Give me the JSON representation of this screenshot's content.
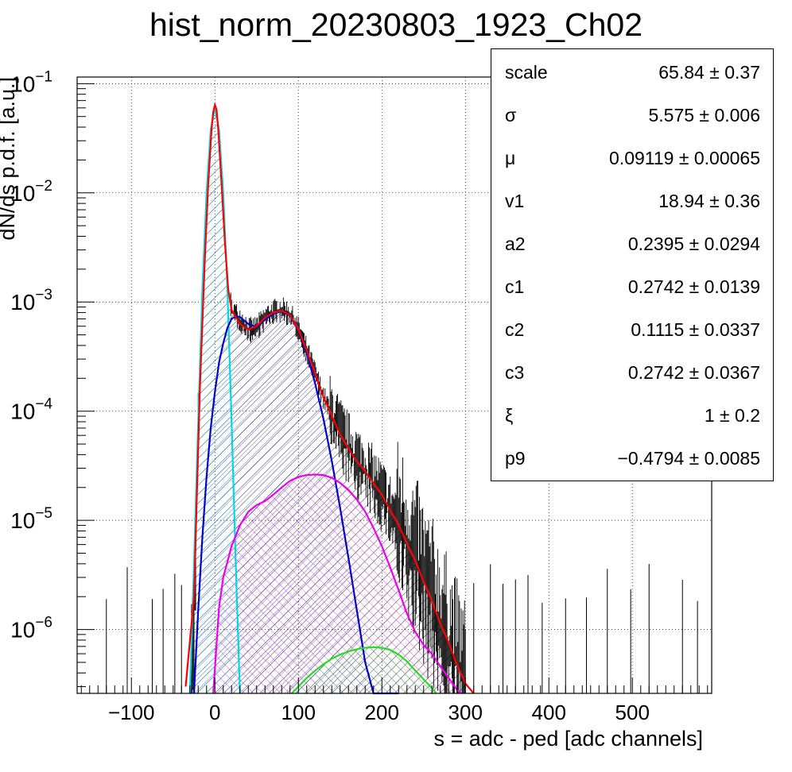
{
  "chart_data": {
    "type": "line",
    "title": "hist_norm_20230803_1923_Ch02",
    "xlabel": "s = adc - ped [adc channels]",
    "ylabel": "dN/ds p.d.f. [a.u.]",
    "xlim": [
      -165,
      595
    ],
    "ylim": [
      2.6e-07,
      0.115
    ],
    "yscale": "log",
    "grid": true,
    "x_ticks": [
      "−100",
      "0",
      "100",
      "200",
      "300",
      "400",
      "500"
    ],
    "y_ticks": [
      {
        "base": "10",
        "exp": "−1"
      },
      {
        "base": "10",
        "exp": "−2"
      },
      {
        "base": "10",
        "exp": "−3"
      },
      {
        "base": "10",
        "exp": "−4"
      },
      {
        "base": "10",
        "exp": "−5"
      },
      {
        "base": "10",
        "exp": "−6"
      }
    ],
    "series": [
      {
        "color": "#ff0000",
        "hatch": false,
        "x": [
          -35,
          -25,
          -18,
          -12,
          -8,
          -4,
          -2,
          0,
          2,
          4,
          8,
          12,
          16,
          20,
          24,
          30,
          40,
          50,
          60,
          70,
          80,
          90,
          100,
          110,
          120,
          130,
          140,
          150,
          160,
          170,
          180,
          190,
          200,
          210,
          220,
          230,
          240,
          250,
          260,
          270,
          280,
          290,
          300,
          310
        ],
        "y": [
          3e-07,
          2e-06,
          0.00016,
          0.0025,
          0.012,
          0.038,
          0.055,
          0.064,
          0.058,
          0.038,
          0.012,
          0.0035,
          0.0013,
          0.00085,
          0.00075,
          0.00063,
          0.00056,
          0.0006,
          0.00072,
          0.0008,
          0.00083,
          0.00076,
          0.00056,
          0.00036,
          0.00022,
          0.000135,
          9e-05,
          6.2e-05,
          4.5e-05,
          3.5e-05,
          2.8e-05,
          2.2e-05,
          1.7e-05,
          1.25e-05,
          9e-06,
          6.2e-06,
          4.2e-06,
          2.8e-06,
          1.8e-06,
          1.15e-06,
          7.5e-07,
          4.8e-07,
          3.2e-07,
          2.6e-07
        ]
      },
      {
        "color": "#00d8e8",
        "hatch": true,
        "x": [
          -30,
          -25,
          -20,
          -15,
          -10,
          -5,
          0,
          5,
          10,
          15,
          20,
          25,
          30
        ],
        "y": [
          2.6e-07,
          4e-06,
          8e-05,
          0.0013,
          0.01,
          0.038,
          0.06,
          0.038,
          0.01,
          0.0013,
          8e-05,
          4e-06,
          2.6e-07
        ]
      },
      {
        "color": "#0000cc",
        "hatch": true,
        "x": [
          -25,
          -20,
          -15,
          -10,
          -5,
          0,
          5,
          10,
          15,
          20,
          25,
          30,
          40,
          50,
          60,
          70,
          80,
          90,
          100,
          110,
          120,
          130,
          140,
          150,
          160,
          170,
          180,
          190,
          200,
          210,
          220
        ],
        "y": [
          2.6e-07,
          1.5e-06,
          7e-06,
          2.5e-05,
          7e-05,
          0.00015,
          0.00028,
          0.00042,
          0.00058,
          0.0007,
          0.00074,
          0.00073,
          0.00063,
          0.00059,
          0.00069,
          0.00078,
          0.00082,
          0.00075,
          0.00055,
          0.00034,
          0.00018,
          8.5e-05,
          3.5e-05,
          1.3e-05,
          4.5e-06,
          1.5e-06,
          5e-07,
          2.6e-07,
          2.6e-07,
          2.6e-07,
          2.6e-07
        ]
      },
      {
        "color": "#ee00ee",
        "hatch": true,
        "x": [
          -2,
          5,
          10,
          20,
          30,
          40,
          50,
          60,
          70,
          80,
          90,
          100,
          110,
          120,
          130,
          140,
          150,
          160,
          170,
          180,
          190,
          200,
          210,
          220,
          230,
          240,
          250,
          260,
          270,
          280,
          290,
          295
        ],
        "y": [
          2.6e-07,
          1.6e-06,
          3e-06,
          5.8e-06,
          9e-06,
          1.2e-05,
          1.38e-05,
          1.5e-05,
          1.72e-05,
          2e-05,
          2.3e-05,
          2.5e-05,
          2.6e-05,
          2.63e-05,
          2.6e-05,
          2.45e-05,
          2.2e-05,
          1.9e-05,
          1.55e-05,
          1.2e-05,
          8.5e-06,
          5.8e-06,
          3.7e-06,
          2.3e-06,
          1.4e-06,
          9.5e-07,
          7.2e-07,
          6e-07,
          4.6e-07,
          3.6e-07,
          2.8e-07,
          2.6e-07
        ]
      },
      {
        "color": "#22dd22",
        "hatch": true,
        "x": [
          92,
          100,
          110,
          120,
          130,
          140,
          150,
          160,
          170,
          180,
          190,
          200,
          210,
          220,
          230,
          240,
          250,
          260,
          265
        ],
        "y": [
          2.6e-07,
          3e-07,
          3.6e-07,
          4.2e-07,
          4.8e-07,
          5.4e-07,
          5.9e-07,
          6.3e-07,
          6.6e-07,
          6.8e-07,
          6.9e-07,
          6.8e-07,
          6.5e-07,
          5.9e-07,
          5.1e-07,
          4.2e-07,
          3.5e-07,
          2.9e-07,
          2.6e-07
        ]
      },
      {
        "color": "#000000",
        "hatch": true,
        "histogram": true,
        "x": [
          -30,
          -25,
          -20,
          -15,
          -10,
          -5,
          0,
          5,
          10,
          15,
          20,
          25,
          30,
          35,
          40,
          45,
          50,
          55,
          60,
          65,
          70,
          75,
          80,
          85,
          90,
          95,
          100,
          105,
          110,
          115,
          120,
          125,
          130,
          135,
          140,
          145,
          150,
          155,
          160,
          165,
          170,
          175,
          180,
          185,
          190,
          195,
          200,
          205,
          210,
          215,
          220,
          225,
          230,
          235,
          240,
          245,
          250,
          255,
          260,
          265,
          270,
          280,
          290,
          300
        ],
        "y": [
          2.6e-07,
          1e-06,
          7e-05,
          0.0012,
          0.01,
          0.038,
          0.062,
          0.038,
          0.01,
          0.0015,
          0.00085,
          0.00076,
          0.0007,
          0.00063,
          0.00056,
          0.00055,
          0.00058,
          0.00064,
          0.00071,
          0.00076,
          0.00081,
          0.00084,
          0.00085,
          0.00082,
          0.00076,
          0.00066,
          0.00056,
          0.00045,
          0.00036,
          0.00028,
          0.00022,
          0.00017,
          0.000135,
          0.00011,
          9e-05,
          7.5e-05,
          6.2e-05,
          5.3e-05,
          4.5e-05,
          4e-05,
          3.5e-05,
          3.1e-05,
          2.8e-05,
          2.5e-05,
          2.2e-05,
          1.9e-05,
          1.7e-05,
          1.45e-05,
          1.25e-05,
          1.05e-05,
          9e-06,
          7.5e-06,
          6.2e-06,
          5e-06,
          4.2e-06,
          3.4e-06,
          2.8e-06,
          2.2e-06,
          1.8e-06,
          1.4e-06,
          1.15e-06,
          7.5e-07,
          4.8e-07,
          3.2e-07
        ]
      }
    ]
  },
  "stats_box": {
    "rows": [
      {
        "name": "scale",
        "value": "65.84 ± 0.37"
      },
      {
        "name": "σ",
        "value": "5.575 ± 0.006"
      },
      {
        "name": "μ",
        "value": "0.09119 ± 0.00065"
      },
      {
        "name": "v1",
        "value": "18.94 ± 0.36"
      },
      {
        "name": "a2",
        "value": "0.2395 ± 0.0294"
      },
      {
        "name": "c1",
        "value": "0.2742 ± 0.0139"
      },
      {
        "name": "c2",
        "value": "0.1115 ± 0.0337"
      },
      {
        "name": "c3",
        "value": "0.2742 ± 0.0367"
      },
      {
        "name": "ξ",
        "value": "1 ± 0.2"
      },
      {
        "name": "p9",
        "value": "−0.4794 ± 0.0085"
      }
    ]
  }
}
